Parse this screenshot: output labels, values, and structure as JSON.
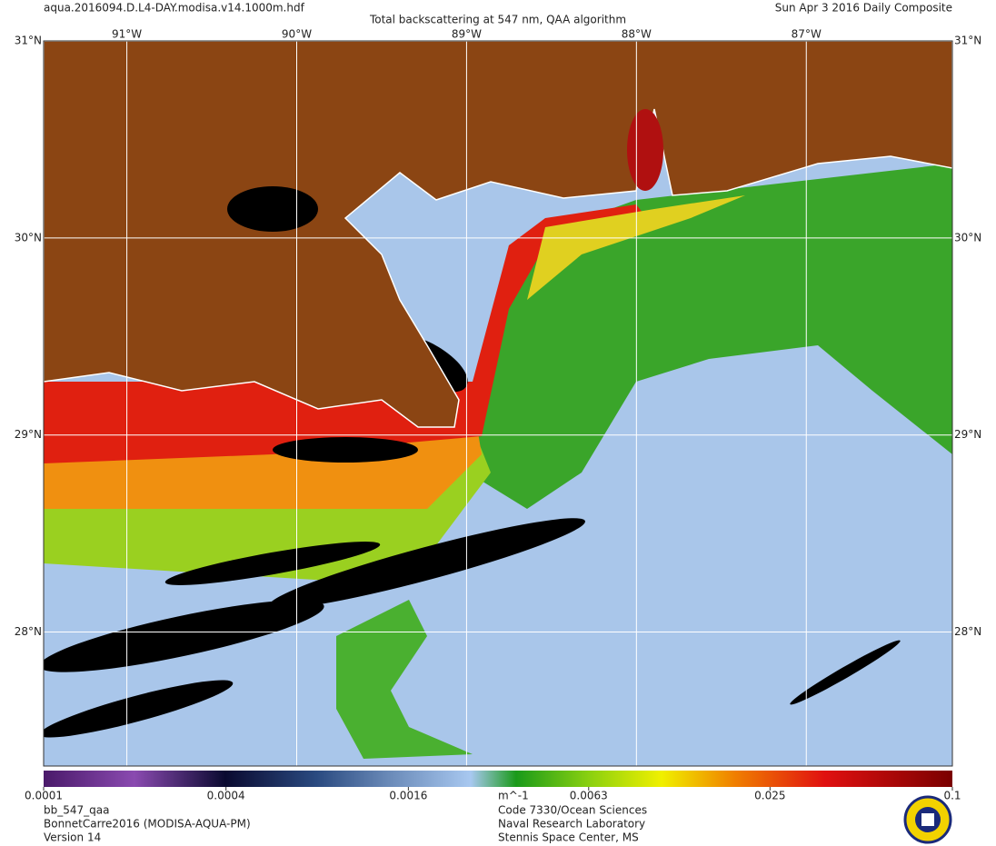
{
  "header": {
    "file": "aqua.2016094.D.L4-DAY.modisa.v14.1000m.hdf",
    "title": "Total backscattering at 547 nm, QAA algorithm",
    "date": "Sun Apr  3 2016 Daily Composite"
  },
  "map": {
    "xlim": [
      -91.49,
      -86.14
    ],
    "ylim": [
      27.32,
      31.0
    ],
    "lon_ticks": [
      {
        "value": -91,
        "label": "91°W"
      },
      {
        "value": -90,
        "label": "90°W"
      },
      {
        "value": -89,
        "label": "89°W"
      },
      {
        "value": -88,
        "label": "88°W"
      },
      {
        "value": -87,
        "label": "87°W"
      }
    ],
    "lat_ticks": [
      {
        "value": 31,
        "label": "31°N"
      },
      {
        "value": 30,
        "label": "30°N"
      },
      {
        "value": 29,
        "label": "29°N"
      },
      {
        "value": 28,
        "label": "28°N"
      }
    ]
  },
  "colorbar": {
    "range": [
      0.0001,
      0.1
    ],
    "log": true,
    "ticks": [
      0.0001,
      0.0004,
      0.0016,
      0.0063,
      0.025,
      0.1
    ],
    "unit": "m^-1"
  },
  "footer": {
    "left": [
      "bb_547_qaa",
      "BonnetCarre2016 (MODISA-AQUA-PM)",
      "Version 14"
    ],
    "right": [
      "Code 7330/Ocean Sciences",
      "Naval Research Laboratory",
      "Stennis Space Center, MS"
    ]
  }
}
